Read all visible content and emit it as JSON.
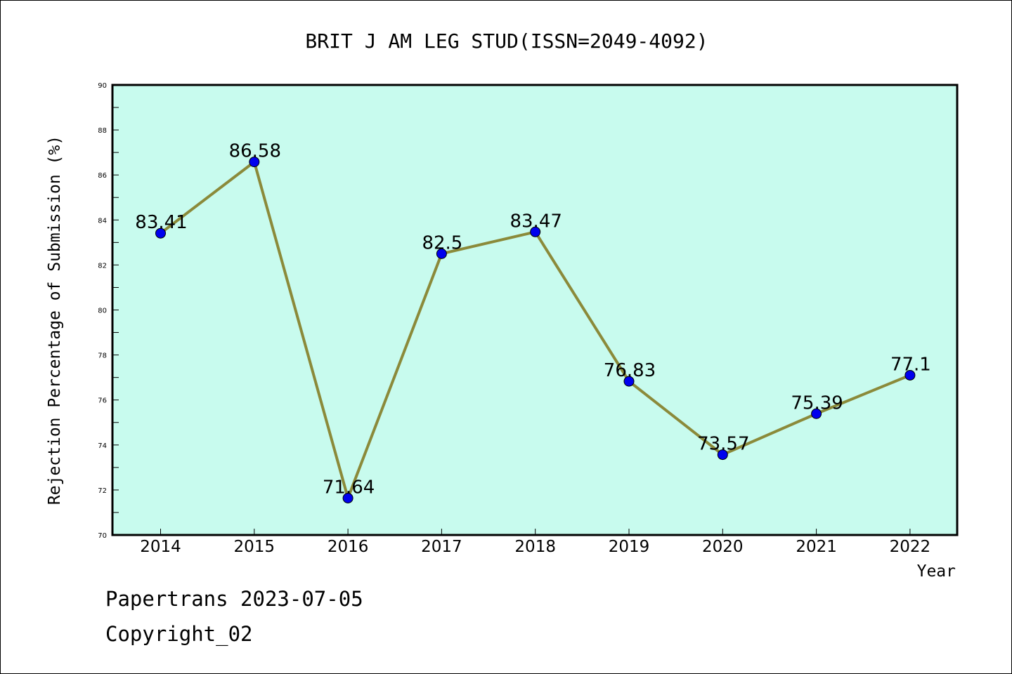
{
  "chart_data": {
    "type": "line",
    "title": "BRIT J AM LEG STUD(ISSN=2049-4092)",
    "xlabel": "Year",
    "ylabel": "Rejection Percentage of Submission (%)",
    "categories": [
      "2014",
      "2015",
      "2016",
      "2017",
      "2018",
      "2019",
      "2020",
      "2021",
      "2022"
    ],
    "values": [
      83.41,
      86.58,
      71.64,
      82.5,
      83.47,
      76.83,
      73.57,
      75.39,
      77.1
    ],
    "data_labels": [
      "83.41",
      "86.58",
      "71.64",
      "82.5",
      "83.47",
      "76.83",
      "73.57",
      "75.39",
      "77.1"
    ],
    "ylim": [
      70,
      90
    ],
    "yticks": [
      "70",
      "72",
      "74",
      "76",
      "78",
      "80",
      "82",
      "84",
      "86",
      "88",
      "90"
    ],
    "grid": false,
    "colors": {
      "plot_background": "#c8fbee",
      "line": "#8b8a3a",
      "marker": "#0000ee"
    }
  },
  "footer": {
    "line1": "Papertrans 2023-07-05",
    "line2": "Copyright_02"
  }
}
